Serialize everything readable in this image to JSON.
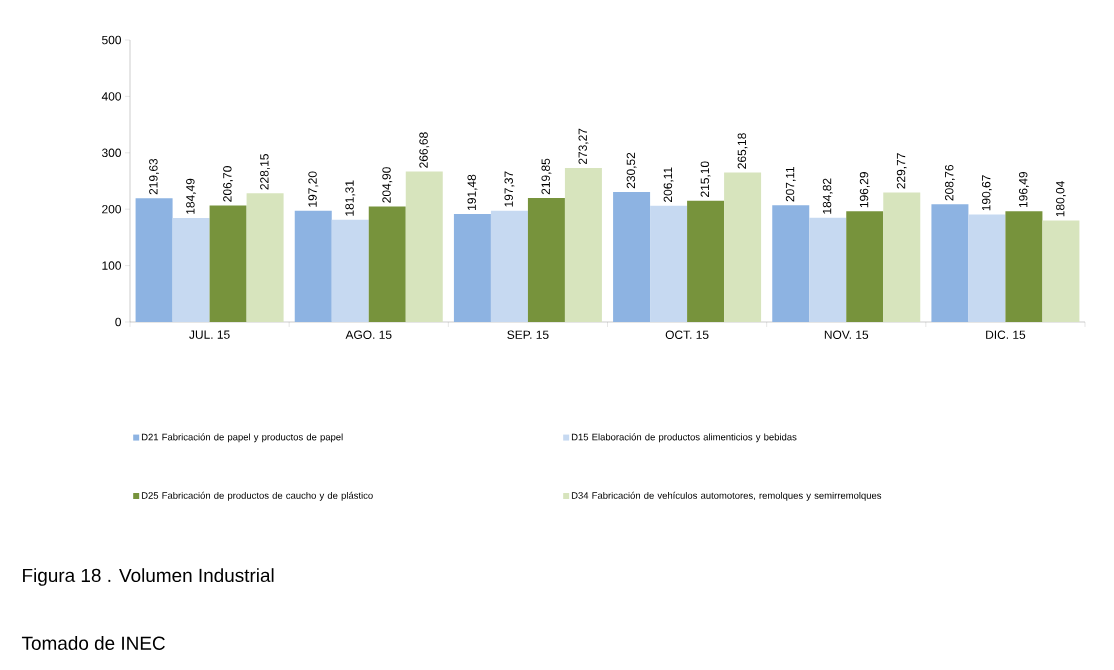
{
  "chart_data": {
    "type": "bar",
    "categories": [
      "JUL. 15",
      "AGO. 15",
      "SEP. 15",
      "OCT. 15",
      "NOV. 15",
      "DIC. 15"
    ],
    "series": [
      {
        "name": "D21 Fabricación de papel y productos de papel",
        "color": "#8db3e2",
        "values": [
          219.63,
          197.2,
          191.48,
          230.52,
          207.11,
          208.76
        ],
        "value_labels": [
          "219,63",
          "197,20",
          "191,48",
          "230,52",
          "207,11",
          "208,76"
        ]
      },
      {
        "name": "D15 Elaboración de productos alimenticios y bebidas",
        "color": "#c6d9f1",
        "values": [
          184.49,
          181.31,
          197.37,
          206.11,
          184.82,
          190.67
        ],
        "value_labels": [
          "184,49",
          "181,31",
          "197,37",
          "206,11",
          "184,82",
          "190,67"
        ]
      },
      {
        "name": "D25 Fabricación de productos de caucho y de plástico",
        "color": "#77933c",
        "values": [
          206.7,
          204.9,
          219.85,
          215.1,
          196.29,
          196.49
        ],
        "value_labels": [
          "206,70",
          "204,90",
          "219,85",
          "215,10",
          "196,29",
          "196,49"
        ]
      },
      {
        "name": "D34 Fabricación de vehículos automotores, remolques y semirremolques",
        "color": "#d7e4bd",
        "values": [
          228.15,
          266.68,
          273.27,
          265.18,
          229.77,
          180.04
        ],
        "value_labels": [
          "228,15",
          "266,68",
          "273,27",
          "265,18",
          "229,77",
          "180,04"
        ]
      }
    ],
    "ylim": [
      0,
      500
    ],
    "yticks": [
      0,
      100,
      200,
      300,
      400,
      500
    ],
    "legend": "bottom",
    "grid": false,
    "annotations": [
      "Figura 18 . Volumen Industrial",
      "Tomado de INEC"
    ]
  }
}
